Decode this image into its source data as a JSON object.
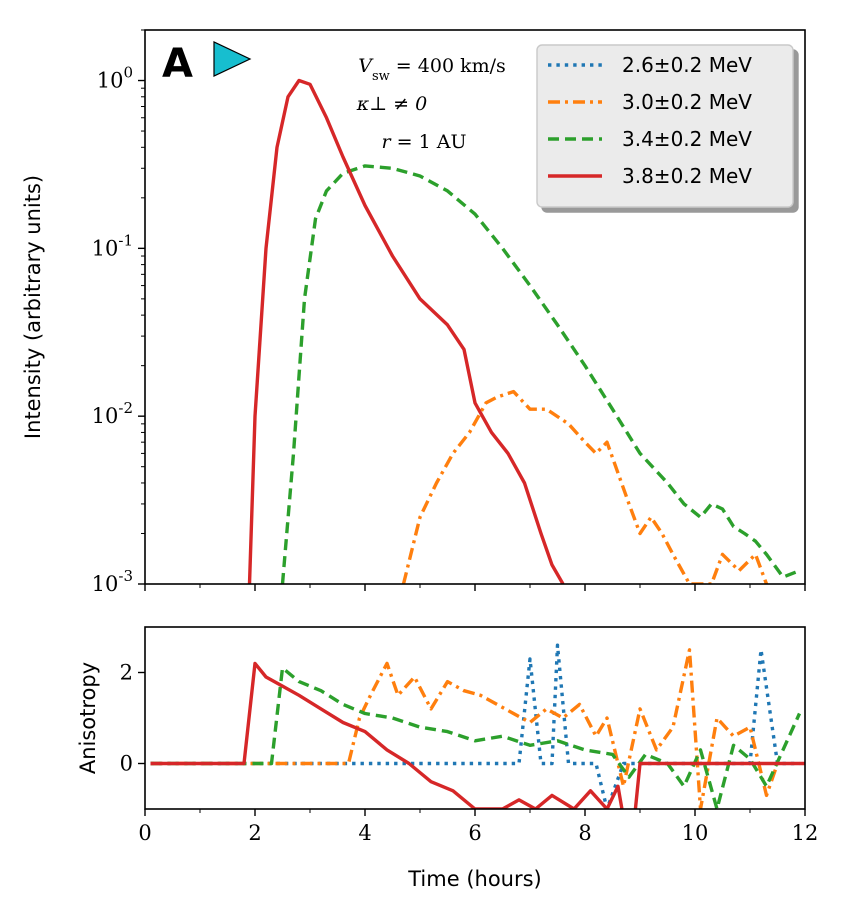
{
  "panel_letter": "A",
  "annotations": {
    "line1": "V_sw = 400 km/s",
    "line2": "κ⊥ ≠ 0",
    "line3": "r = 1 AU"
  },
  "colors": {
    "blue": "#1f77b4",
    "orange": "#ff7f0e",
    "green": "#2ca02c",
    "red": "#d62728",
    "marker": "#17becf"
  },
  "chart_data": [
    {
      "type": "line",
      "panel": "top",
      "ylabel": "Intensity (arbitrary units)",
      "xlabel": "",
      "yscale": "log",
      "xlim": [
        0,
        12
      ],
      "ylim": [
        0.001,
        2
      ],
      "yticks": [
        0.001,
        0.01,
        0.1,
        1
      ],
      "ytick_labels": [
        "10^-3",
        "10^-2",
        "10^-1",
        "10^0"
      ],
      "legend_position": "top-right",
      "series": [
        {
          "name": "2.6±0.2 MeV",
          "color": "#1f77b4",
          "style": "dotted",
          "x": [],
          "y": []
        },
        {
          "name": "3.0±0.2 MeV",
          "color": "#ff7f0e",
          "style": "dashdot",
          "x": [
            4.7,
            5.0,
            5.3,
            5.6,
            5.9,
            6.2,
            6.4,
            6.7,
            7.0,
            7.3,
            7.7,
            8.0,
            8.2,
            8.4,
            8.8,
            9.0,
            9.2,
            9.4,
            9.6,
            9.9,
            10.3,
            10.5,
            10.8,
            11.1,
            11.3
          ],
          "y": [
            0.001,
            0.0025,
            0.004,
            0.006,
            0.008,
            0.012,
            0.013,
            0.014,
            0.011,
            0.011,
            0.009,
            0.007,
            0.006,
            0.007,
            0.003,
            0.002,
            0.0025,
            0.002,
            0.0015,
            0.001,
            0.001,
            0.0015,
            0.0012,
            0.0015,
            0.001
          ]
        },
        {
          "name": "3.4±0.2 MeV",
          "color": "#2ca02c",
          "style": "dashed",
          "x": [
            2.5,
            2.7,
            2.9,
            3.1,
            3.3,
            3.6,
            4.0,
            4.5,
            5.0,
            5.5,
            6.0,
            6.5,
            7.0,
            7.5,
            8.0,
            8.5,
            9.0,
            9.5,
            9.8,
            10.1,
            10.3,
            10.5,
            10.7,
            10.9,
            11.1,
            11.3,
            11.6,
            11.9
          ],
          "y": [
            0.001,
            0.006,
            0.05,
            0.15,
            0.22,
            0.28,
            0.31,
            0.3,
            0.27,
            0.22,
            0.16,
            0.1,
            0.06,
            0.035,
            0.02,
            0.011,
            0.006,
            0.004,
            0.003,
            0.0025,
            0.003,
            0.0028,
            0.0022,
            0.002,
            0.0018,
            0.0015,
            0.0011,
            0.0012
          ]
        },
        {
          "name": "3.8±0.2 MeV",
          "color": "#d62728",
          "style": "solid",
          "x": [
            1.9,
            2.0,
            2.2,
            2.4,
            2.6,
            2.8,
            3.0,
            3.3,
            3.6,
            4.0,
            4.5,
            5.0,
            5.5,
            5.8,
            6.0,
            6.3,
            6.6,
            6.9,
            7.2,
            7.4,
            7.6
          ],
          "y": [
            0.001,
            0.01,
            0.1,
            0.4,
            0.8,
            1.0,
            0.95,
            0.6,
            0.35,
            0.18,
            0.09,
            0.05,
            0.035,
            0.025,
            0.012,
            0.008,
            0.006,
            0.004,
            0.002,
            0.0013,
            0.001
          ]
        }
      ]
    },
    {
      "type": "line",
      "panel": "bottom",
      "ylabel": "Anisotropy",
      "xlabel": "Time (hours)",
      "xlim": [
        0,
        12
      ],
      "ylim": [
        -1,
        3
      ],
      "xticks": [
        0,
        2,
        4,
        6,
        8,
        10,
        12
      ],
      "xtick_labels": [
        "0",
        "2",
        "4",
        "6",
        "8",
        "10",
        "12"
      ],
      "yticks": [
        0,
        2
      ],
      "ytick_labels": [
        "0",
        "2"
      ],
      "series": [
        {
          "name": "2.6±0.2 MeV",
          "color": "#1f77b4",
          "style": "dotted",
          "x": [
            0.1,
            6.8,
            7.0,
            7.2,
            7.4,
            7.5,
            7.7,
            8.0,
            8.2,
            8.4,
            8.7,
            9.0,
            10.0,
            11.0,
            11.2,
            11.5,
            11.9
          ],
          "y": [
            0,
            0,
            2.3,
            0,
            0,
            2.6,
            0,
            0,
            0,
            -1.0,
            0,
            0,
            0,
            0,
            2.5,
            0,
            0
          ]
        },
        {
          "name": "3.0±0.2 MeV",
          "color": "#ff7f0e",
          "style": "dashdot",
          "x": [
            0.1,
            3.7,
            3.9,
            4.1,
            4.4,
            4.6,
            4.9,
            5.2,
            5.5,
            5.8,
            6.1,
            6.4,
            6.7,
            7.0,
            7.3,
            7.6,
            7.9,
            8.2,
            8.4,
            8.7,
            9.0,
            9.3,
            9.6,
            9.9,
            10.1,
            10.4,
            10.7,
            11.0,
            11.3,
            11.5
          ],
          "y": [
            0,
            0,
            1.0,
            1.5,
            2.2,
            1.5,
            1.9,
            1.2,
            1.8,
            1.6,
            1.5,
            1.3,
            1.1,
            0.9,
            1.2,
            1.0,
            1.3,
            0.6,
            1.0,
            -0.5,
            1.2,
            0.3,
            0.8,
            2.5,
            -1.0,
            1.0,
            0.6,
            0.8,
            -0.7,
            0
          ]
        },
        {
          "name": "3.4±0.2 MeV",
          "color": "#2ca02c",
          "style": "dashed",
          "x": [
            0.1,
            2.3,
            2.5,
            2.8,
            3.2,
            3.6,
            4.0,
            4.5,
            5.0,
            5.5,
            6.0,
            6.5,
            7.0,
            7.5,
            8.0,
            8.5,
            8.8,
            9.1,
            9.5,
            9.8,
            10.1,
            10.4,
            10.7,
            11.0,
            11.3,
            11.6,
            11.9
          ],
          "y": [
            0,
            0,
            2.1,
            1.8,
            1.6,
            1.3,
            1.1,
            1.0,
            0.8,
            0.7,
            0.5,
            0.6,
            0.4,
            0.5,
            0.3,
            0.2,
            -0.3,
            0.2,
            0.0,
            -0.5,
            0.3,
            -1.0,
            0.4,
            0.1,
            -0.5,
            0.3,
            1.1
          ]
        },
        {
          "name": "3.8±0.2 MeV",
          "color": "#d62728",
          "style": "solid",
          "x": [
            0.1,
            1.8,
            2.0,
            2.2,
            2.5,
            2.8,
            3.2,
            3.6,
            4.0,
            4.4,
            4.8,
            5.2,
            5.6,
            6.0,
            6.5,
            6.8,
            7.1,
            7.4,
            7.8,
            8.1,
            8.4,
            8.6,
            8.7,
            8.9,
            9.0,
            12.0
          ],
          "y": [
            0,
            0,
            2.2,
            1.9,
            1.7,
            1.5,
            1.2,
            0.9,
            0.7,
            0.3,
            0.0,
            -0.4,
            -0.6,
            -1.0,
            -1.0,
            -0.8,
            -1.0,
            -0.7,
            -1.0,
            -0.6,
            -1.0,
            -0.5,
            -1.2,
            -1.2,
            0,
            0
          ]
        }
      ]
    }
  ]
}
